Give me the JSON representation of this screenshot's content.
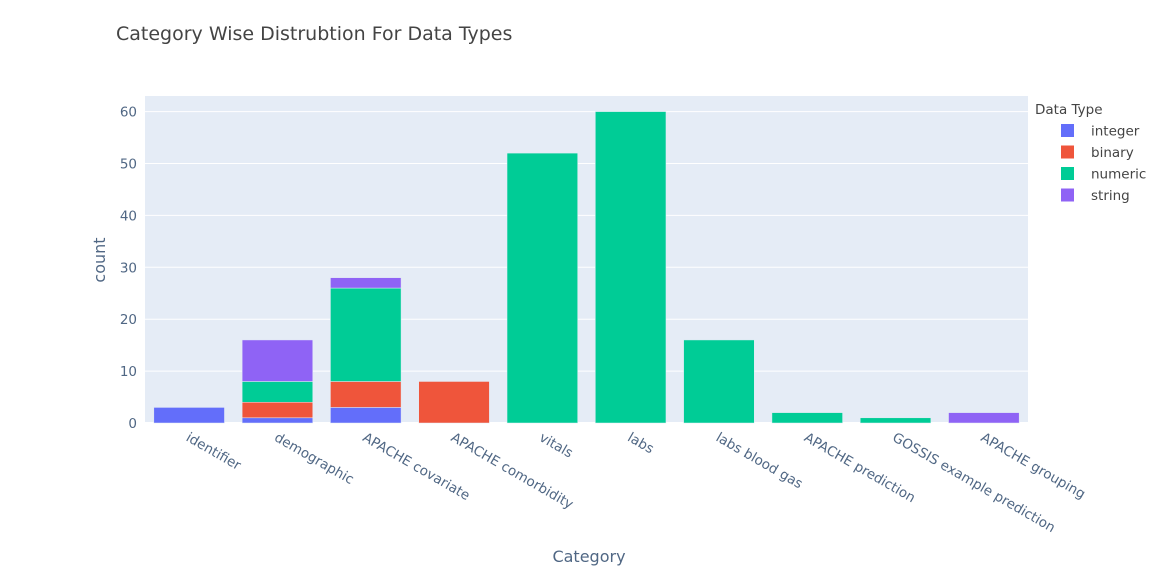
{
  "chart_data": {
    "type": "bar",
    "barmode": "stack",
    "title": "Category Wise Distrubtion For Data Types",
    "xlabel": "Category",
    "ylabel": "count",
    "ylim": [
      0,
      63
    ],
    "yticks": [
      0,
      10,
      20,
      30,
      40,
      50,
      60
    ],
    "grid": true,
    "legend_title": "Data Type",
    "legend_position": "top-right",
    "categories": [
      "identifier",
      "demographic",
      "APACHE covariate",
      "APACHE comorbidity",
      "vitals",
      "labs",
      "labs blood gas",
      "APACHE prediction",
      "GOSSIS example prediction",
      "APACHE grouping"
    ],
    "series": [
      {
        "name": "integer",
        "color": "#636efa",
        "values": [
          3,
          1,
          3,
          0,
          0,
          0,
          0,
          0,
          0,
          0
        ]
      },
      {
        "name": "binary",
        "color": "#EF553B",
        "values": [
          0,
          3,
          5,
          8,
          0,
          0,
          0,
          0,
          0,
          0
        ]
      },
      {
        "name": "numeric",
        "color": "#00cc96",
        "values": [
          0,
          4,
          18,
          0,
          52,
          60,
          16,
          2,
          1,
          0
        ]
      },
      {
        "name": "string",
        "color": "#8f63f5",
        "values": [
          0,
          8,
          2,
          0,
          0,
          0,
          0,
          0,
          0,
          2
        ]
      }
    ]
  }
}
